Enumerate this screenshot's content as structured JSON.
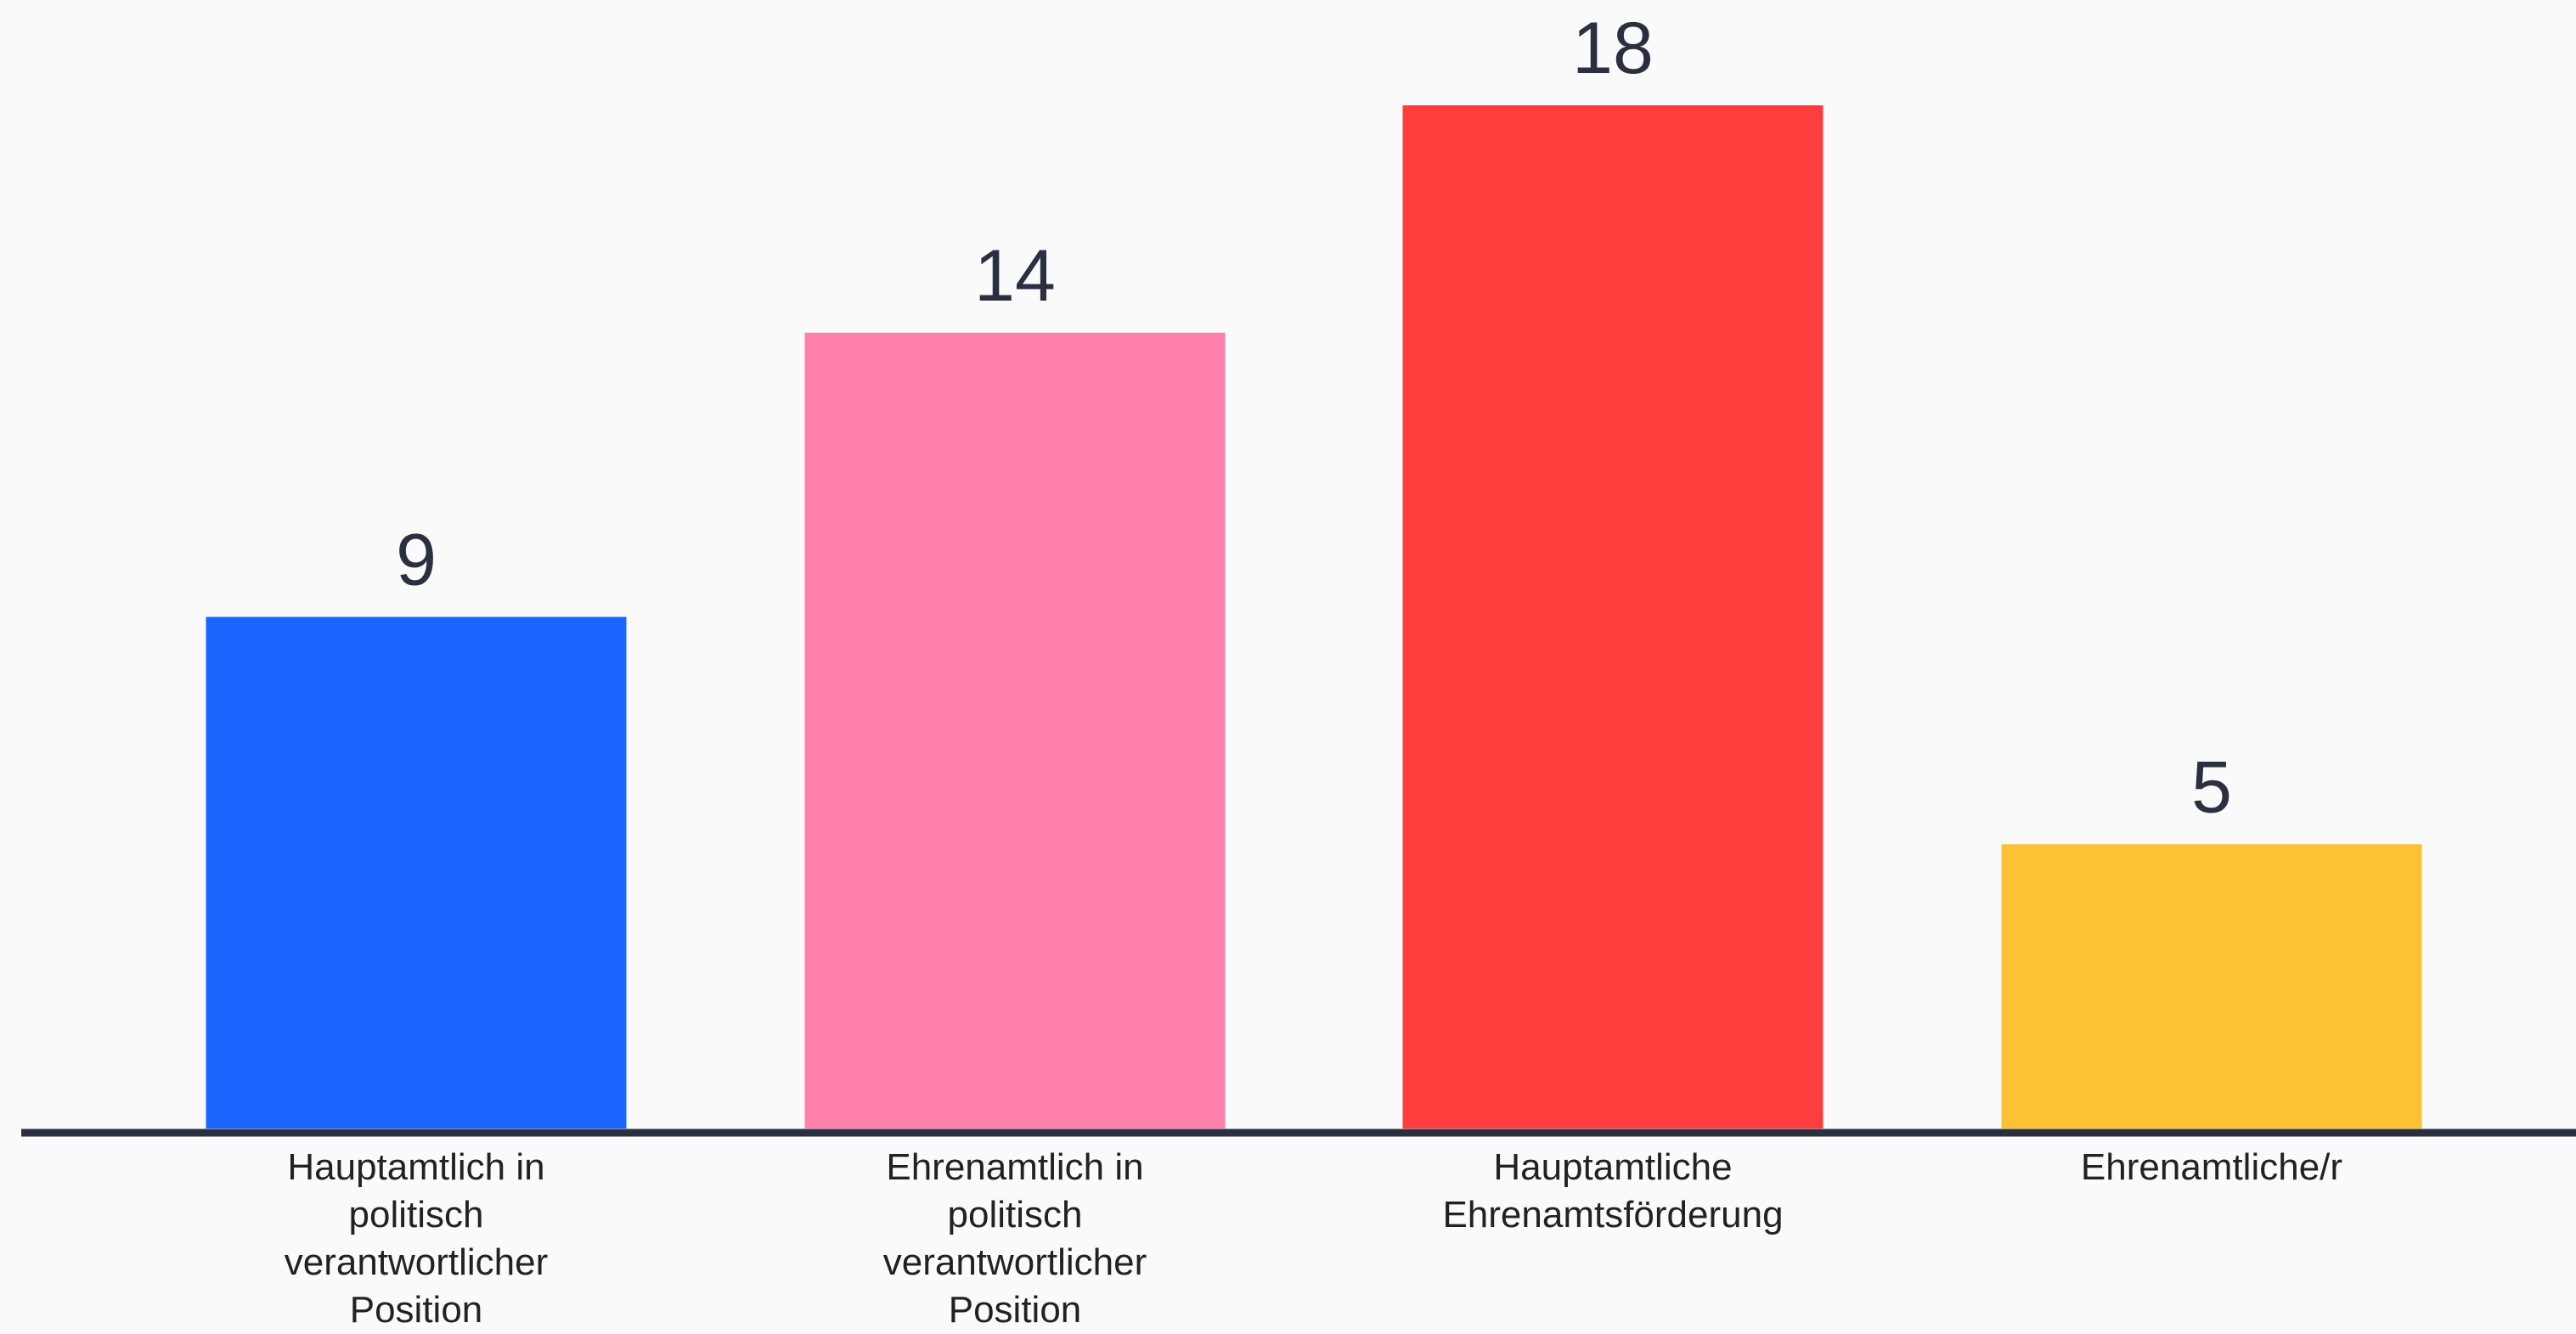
{
  "chart_data": {
    "type": "bar",
    "categories": [
      "Hauptamtlich in\npolitisch\nverantwortlicher\nPosition",
      "Ehrenamtlich in\npolitisch\nverantwortlicher\nPosition",
      "Hauptamtliche\nEhrenamtsförderung",
      "Ehrenamtliche/r"
    ],
    "values": [
      9,
      14,
      18,
      5
    ],
    "colors": [
      "#1a66ff",
      "#ff80ab",
      "#ff3d3d",
      "#fcc236"
    ],
    "data_labels": [
      "9",
      "14",
      "18",
      "5"
    ],
    "ylim": [
      0,
      18
    ],
    "grid": false,
    "legend": "none",
    "axis_color": "#2b3040"
  }
}
